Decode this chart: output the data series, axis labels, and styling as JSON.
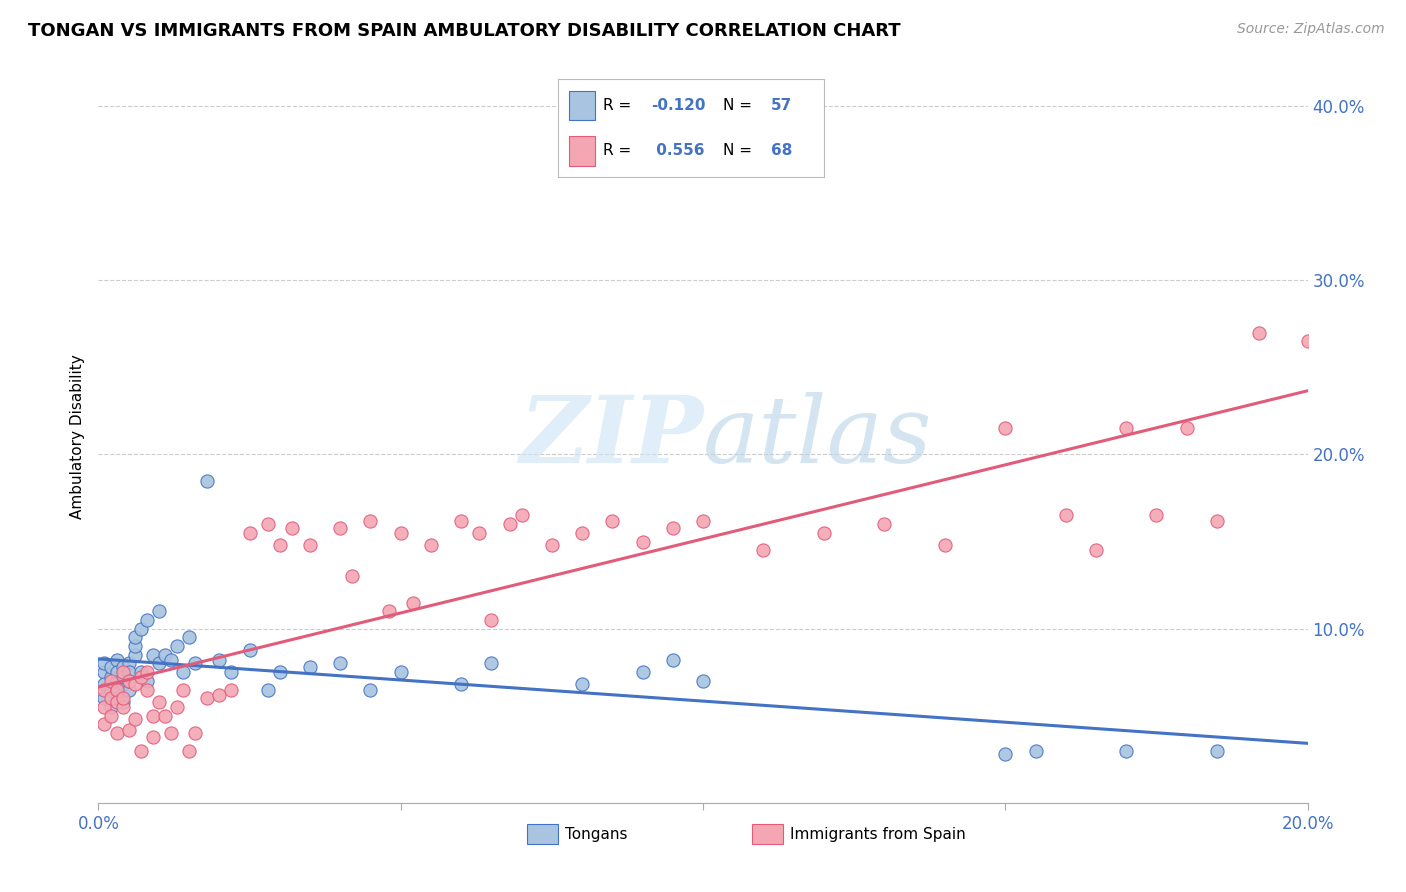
{
  "title": "TONGAN VS IMMIGRANTS FROM SPAIN AMBULATORY DISABILITY CORRELATION CHART",
  "source": "Source: ZipAtlas.com",
  "ylabel": "Ambulatory Disability",
  "xlim": [
    0.0,
    0.2
  ],
  "ylim": [
    0.0,
    0.42
  ],
  "x_ticks": [
    0.0,
    0.05,
    0.1,
    0.15,
    0.2
  ],
  "y_ticks": [
    0.0,
    0.1,
    0.2,
    0.3,
    0.4
  ],
  "legend_labels": [
    "Tongans",
    "Immigrants from Spain"
  ],
  "R_tongan": -0.12,
  "N_tongan": 57,
  "R_spain": 0.556,
  "N_spain": 68,
  "color_tongan": "#a8c4e0",
  "color_spain": "#f4a7b3",
  "line_color_tongan": "#4472c4",
  "line_color_spain": "#e05c7a",
  "watermark_zip": "ZIP",
  "watermark_atlas": "atlas",
  "tongan_x": [
    0.001,
    0.001,
    0.001,
    0.001,
    0.002,
    0.002,
    0.002,
    0.002,
    0.003,
    0.003,
    0.003,
    0.003,
    0.003,
    0.004,
    0.004,
    0.004,
    0.004,
    0.005,
    0.005,
    0.005,
    0.005,
    0.006,
    0.006,
    0.006,
    0.007,
    0.007,
    0.008,
    0.008,
    0.009,
    0.01,
    0.01,
    0.011,
    0.012,
    0.013,
    0.014,
    0.015,
    0.016,
    0.018,
    0.02,
    0.022,
    0.025,
    0.028,
    0.03,
    0.035,
    0.04,
    0.045,
    0.05,
    0.06,
    0.065,
    0.08,
    0.09,
    0.095,
    0.1,
    0.15,
    0.155,
    0.17,
    0.185
  ],
  "tongan_y": [
    0.075,
    0.068,
    0.08,
    0.06,
    0.072,
    0.065,
    0.078,
    0.055,
    0.07,
    0.082,
    0.06,
    0.075,
    0.065,
    0.068,
    0.078,
    0.072,
    0.058,
    0.08,
    0.065,
    0.075,
    0.07,
    0.085,
    0.09,
    0.095,
    0.075,
    0.1,
    0.105,
    0.07,
    0.085,
    0.08,
    0.11,
    0.085,
    0.082,
    0.09,
    0.075,
    0.095,
    0.08,
    0.185,
    0.082,
    0.075,
    0.088,
    0.065,
    0.075,
    0.078,
    0.08,
    0.065,
    0.075,
    0.068,
    0.08,
    0.068,
    0.075,
    0.082,
    0.07,
    0.028,
    0.03,
    0.03,
    0.03
  ],
  "spain_x": [
    0.001,
    0.001,
    0.001,
    0.002,
    0.002,
    0.002,
    0.003,
    0.003,
    0.003,
    0.004,
    0.004,
    0.004,
    0.005,
    0.005,
    0.006,
    0.006,
    0.007,
    0.007,
    0.008,
    0.008,
    0.009,
    0.009,
    0.01,
    0.011,
    0.012,
    0.013,
    0.014,
    0.015,
    0.016,
    0.018,
    0.02,
    0.022,
    0.025,
    0.028,
    0.03,
    0.032,
    0.035,
    0.04,
    0.042,
    0.045,
    0.048,
    0.05,
    0.052,
    0.055,
    0.06,
    0.063,
    0.065,
    0.068,
    0.07,
    0.075,
    0.08,
    0.085,
    0.09,
    0.095,
    0.1,
    0.11,
    0.12,
    0.13,
    0.14,
    0.15,
    0.16,
    0.165,
    0.17,
    0.175,
    0.18,
    0.185,
    0.192,
    0.2
  ],
  "spain_y": [
    0.065,
    0.055,
    0.045,
    0.07,
    0.06,
    0.05,
    0.065,
    0.058,
    0.04,
    0.055,
    0.075,
    0.06,
    0.07,
    0.042,
    0.048,
    0.068,
    0.072,
    0.03,
    0.075,
    0.065,
    0.05,
    0.038,
    0.058,
    0.05,
    0.04,
    0.055,
    0.065,
    0.03,
    0.04,
    0.06,
    0.062,
    0.065,
    0.155,
    0.16,
    0.148,
    0.158,
    0.148,
    0.158,
    0.13,
    0.162,
    0.11,
    0.155,
    0.115,
    0.148,
    0.162,
    0.155,
    0.105,
    0.16,
    0.165,
    0.148,
    0.155,
    0.162,
    0.15,
    0.158,
    0.162,
    0.145,
    0.155,
    0.16,
    0.148,
    0.215,
    0.165,
    0.145,
    0.215,
    0.165,
    0.215,
    0.162,
    0.27,
    0.265
  ]
}
